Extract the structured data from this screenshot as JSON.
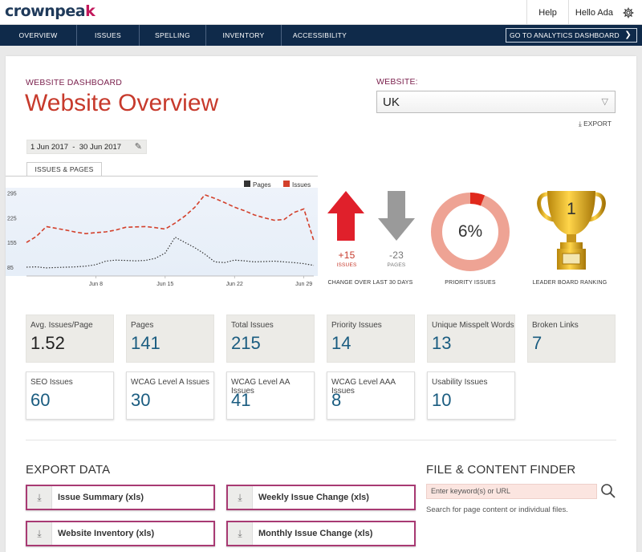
{
  "brand": {
    "logo_main": "crownpea",
    "logo_accent": "k"
  },
  "top": {
    "help": "Help",
    "greeting": "Hello Ada",
    "settings_icon": "gear-icon"
  },
  "nav": {
    "items": [
      "OVERVIEW",
      "ISSUES",
      "SPELLING",
      "INVENTORY",
      "ACCESSIBILITY"
    ],
    "cta": "GO TO ANALYTICS DASHBOARD"
  },
  "header": {
    "eyebrow": "WEBSITE DASHBOARD",
    "title": "Website Overview",
    "website_label": "WEBSITE:",
    "website_value": "UK",
    "export": "EXPORT"
  },
  "date_range": {
    "start": "1 Jun 2017",
    "sep": "-",
    "end": "30 Jun 2017"
  },
  "chart_tab": "ISSUES & PAGES",
  "chart_data": {
    "type": "line",
    "x": [
      "Jun 1",
      "Jun 2",
      "Jun 3",
      "Jun 4",
      "Jun 5",
      "Jun 6",
      "Jun 7",
      "Jun 8",
      "Jun 9",
      "Jun 10",
      "Jun 11",
      "Jun 12",
      "Jun 13",
      "Jun 14",
      "Jun 15",
      "Jun 16",
      "Jun 17",
      "Jun 18",
      "Jun 19",
      "Jun 20",
      "Jun 21",
      "Jun 22",
      "Jun 23",
      "Jun 24",
      "Jun 25",
      "Jun 26",
      "Jun 27",
      "Jun 28",
      "Jun 29",
      "Jun 30"
    ],
    "x_tick_labels": [
      "Jun 8",
      "Jun 15",
      "Jun 22",
      "Jun 29"
    ],
    "y_tick_labels": [
      "85",
      "155",
      "225",
      "295"
    ],
    "ylim": [
      60,
      310
    ],
    "legend": [
      "Pages",
      "Issues"
    ],
    "legend_position": "top-right",
    "series": [
      {
        "name": "Issues",
        "color": "#d3402b",
        "values": [
          155,
          172,
          200,
          195,
          190,
          184,
          180,
          183,
          185,
          190,
          198,
          199,
          200,
          197,
          193,
          210,
          230,
          255,
          290,
          280,
          268,
          255,
          245,
          233,
          225,
          218,
          220,
          240,
          250,
          160
        ]
      },
      {
        "name": "Pages",
        "color": "#333333",
        "values": [
          85,
          86,
          83,
          84,
          85,
          86,
          88,
          92,
          102,
          105,
          104,
          103,
          104,
          110,
          125,
          170,
          155,
          140,
          122,
          100,
          98,
          105,
          103,
          100,
          101,
          102,
          100,
          98,
          95,
          90
        ]
      }
    ]
  },
  "changes": {
    "issues_delta": "+15",
    "issues_label": "ISSUES",
    "pages_delta": "-23",
    "pages_label": "PAGES",
    "caption": "CHANGE OVER LAST 30 DAYS"
  },
  "priority": {
    "percent_label": "6%",
    "percent": 6,
    "caption": "PRIORITY ISSUES"
  },
  "leaderboard": {
    "rank": "1",
    "caption": "LEADER BOARD RANKING"
  },
  "tiles_row1": [
    {
      "label": "Avg. Issues/Page",
      "value": "1.52"
    },
    {
      "label": "Pages",
      "value": "141"
    },
    {
      "label": "Total Issues",
      "value": "215"
    },
    {
      "label": "Priority Issues",
      "value": "14"
    },
    {
      "label": "Unique Misspelt Words",
      "value": "13"
    },
    {
      "label": "Broken Links",
      "value": "7"
    }
  ],
  "tiles_row2": [
    {
      "label": "SEO Issues",
      "value": "60"
    },
    {
      "label": "WCAG Level A Issues",
      "value": "30"
    },
    {
      "label": "WCAG Level AA Issues",
      "value": "41"
    },
    {
      "label": "WCAG Level AAA Issues",
      "value": "8"
    },
    {
      "label": "Usability Issues",
      "value": "10"
    }
  ],
  "export_data": {
    "title": "EXPORT DATA",
    "buttons": [
      "Issue Summary (xls)",
      "Weekly Issue Change (xls)",
      "Website Inventory (xls)",
      "Monthly Issue Change (xls)"
    ]
  },
  "finder": {
    "title": "FILE & CONTENT FINDER",
    "placeholder": "Enter keyword(s) or URL",
    "help": "Search for page content or individual files."
  }
}
